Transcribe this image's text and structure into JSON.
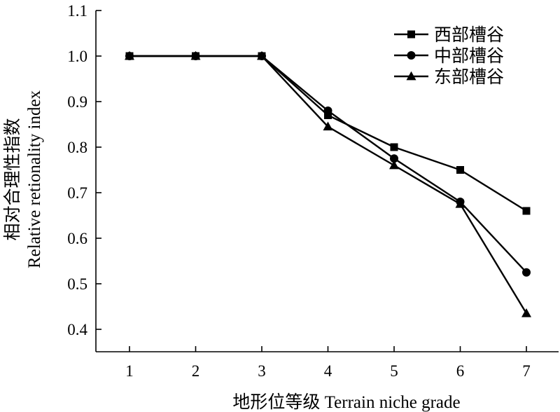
{
  "chart_data": {
    "type": "line",
    "title": "",
    "xlabel": "地形位等级 Terrain niche grade",
    "ylabel": "相对合理性指数",
    "ylabel_en": "Relative retionality index",
    "x": [
      1,
      2,
      3,
      4,
      5,
      6,
      7
    ],
    "xticks": [
      "1",
      "2",
      "3",
      "4",
      "5",
      "6",
      "7"
    ],
    "xlim": [
      0.5,
      7.5
    ],
    "ylim": [
      0.35,
      1.1
    ],
    "yticks": [
      "0.4",
      "0.5",
      "0.6",
      "0.7",
      "0.8",
      "0.9",
      "1.0",
      "1.1"
    ],
    "grid": false,
    "legend_position": "top-right",
    "series": [
      {
        "name": "西部槽谷",
        "marker": "square",
        "values": [
          1.0,
          1.0,
          1.0,
          0.87,
          0.8,
          0.75,
          0.66
        ]
      },
      {
        "name": "中部槽谷",
        "marker": "circle",
        "values": [
          1.0,
          1.0,
          1.0,
          0.88,
          0.775,
          0.68,
          0.525
        ]
      },
      {
        "name": "东部槽谷",
        "marker": "triangle",
        "values": [
          1.0,
          1.0,
          1.0,
          0.845,
          0.76,
          0.675,
          0.435
        ]
      }
    ],
    "colors": {
      "line": "#000000",
      "background": "#ffffff"
    }
  }
}
